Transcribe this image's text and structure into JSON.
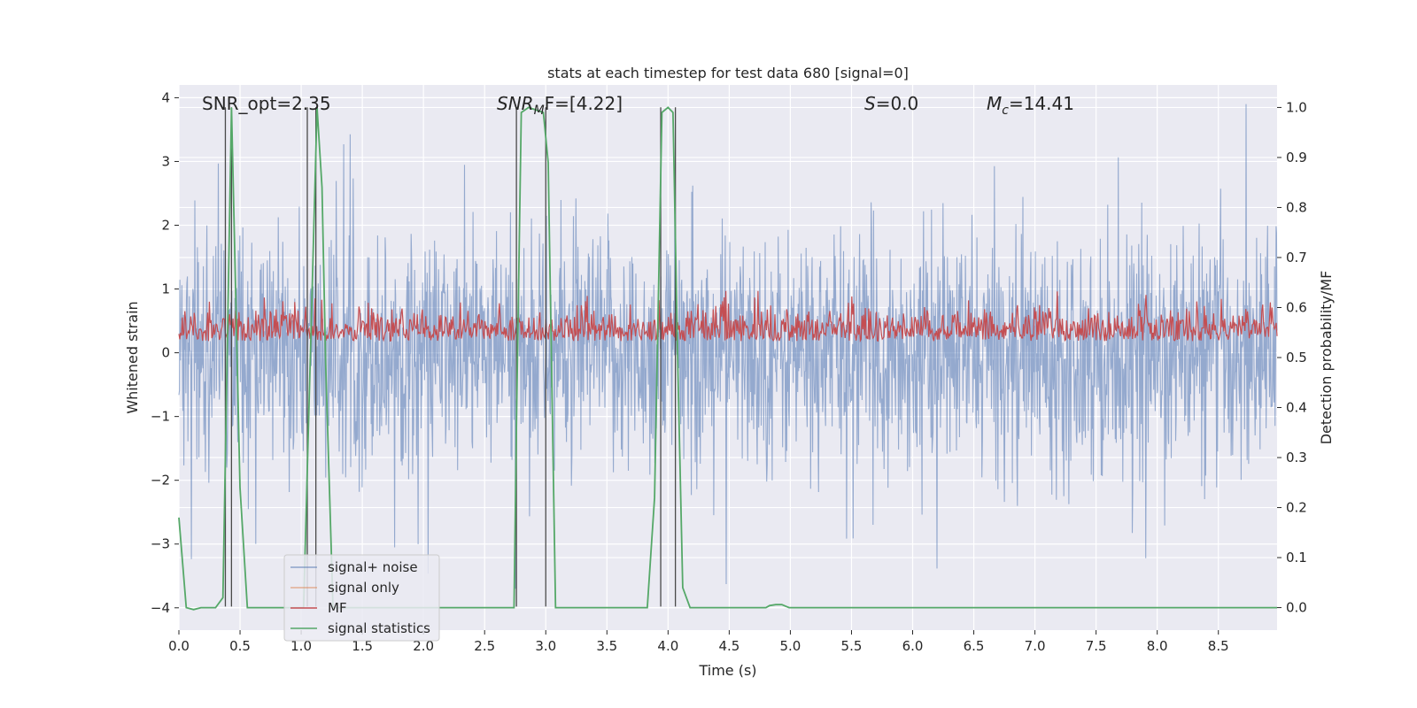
{
  "chart_data": {
    "type": "line",
    "title": "stats at each timestep for test data 680 [signal=0]",
    "xlabel": "Time (s)",
    "ylabel": "Whitened strain",
    "y2label": "Detection probability/MF",
    "xlim": [
      0.0,
      8.98
    ],
    "ylim": [
      -4.35,
      4.2
    ],
    "y2lim": [
      -0.045,
      1.045
    ],
    "xticks": [
      "0.0",
      "0.5",
      "1.0",
      "1.5",
      "2.0",
      "2.5",
      "3.0",
      "3.5",
      "4.0",
      "4.5",
      "5.0",
      "5.5",
      "6.0",
      "6.5",
      "7.0",
      "7.5",
      "8.0",
      "8.5"
    ],
    "yticks": [
      "4",
      "3",
      "2",
      "1",
      "0",
      "−1",
      "−2",
      "−3",
      "−4"
    ],
    "y2ticks": [
      "1.0",
      "0.9",
      "0.8",
      "0.7",
      "0.6",
      "0.5",
      "0.4",
      "0.3",
      "0.2",
      "0.1",
      "0.0"
    ],
    "grid": true,
    "legend_position": "lower-left",
    "annotations": [
      {
        "id": "snr_opt",
        "text": "SNR_opt=2.35"
      },
      {
        "id": "snr_mf",
        "text": "SNR",
        "sub": "M",
        "rest": "F=[4.22]"
      },
      {
        "id": "s",
        "text": "S",
        "rest": "=0.0"
      },
      {
        "id": "mc",
        "text": "M",
        "sub": "c",
        "rest": "=14.41"
      }
    ],
    "series": [
      {
        "name": "signal+ noise",
        "color": "#4c72b0",
        "axis": "left",
        "description": "whitened strain noise, std approx 0.85, peaks approx +3.9 / -3.7"
      },
      {
        "name": "signal only",
        "color": "#dd8452",
        "axis": "left",
        "values": []
      },
      {
        "name": "MF",
        "color": "#c44e52",
        "axis": "right",
        "description": "matched-filter output between approx 0.53 and 0.63 on right axis"
      },
      {
        "name": "signal statistics",
        "color": "#55a868",
        "axis": "right",
        "x": [
          0.0,
          0.06,
          0.12,
          0.18,
          0.3,
          0.36,
          0.43,
          0.5,
          0.56,
          0.62,
          0.9,
          1.02,
          1.13,
          1.17,
          1.2,
          1.26,
          1.4,
          2.0,
          2.5,
          2.74,
          2.76,
          2.8,
          2.86,
          2.98,
          3.02,
          3.08,
          3.13,
          3.17,
          3.2,
          3.3,
          3.6,
          3.83,
          3.89,
          3.95,
          4.0,
          4.04,
          4.08,
          4.12,
          4.18,
          4.3,
          4.5,
          4.8,
          4.83,
          4.88,
          4.93,
          4.99,
          5.1,
          6.0,
          7.0,
          8.0,
          8.98
        ],
        "y": [
          0.18,
          0.0,
          -0.004,
          0.0,
          0.0,
          0.02,
          1.0,
          0.24,
          0.0,
          0.0,
          0.0,
          0.0,
          1.0,
          0.84,
          0.49,
          0.0,
          0.0,
          0.0,
          0.0,
          0.0,
          0.36,
          0.99,
          1.0,
          0.99,
          0.89,
          0.0,
          0.0,
          0.0,
          0.0,
          0.0,
          0.0,
          0.0,
          0.22,
          0.99,
          1.0,
          0.99,
          0.48,
          0.04,
          0.0,
          0.0,
          0.0,
          0.0,
          0.004,
          0.006,
          0.006,
          0.0,
          0.0,
          0.0,
          0.0,
          0.0,
          0.0
        ]
      }
    ],
    "vertical_markers": [
      0.38,
      0.43,
      1.05,
      1.12,
      2.76,
      3.0,
      3.94,
      4.06
    ]
  }
}
